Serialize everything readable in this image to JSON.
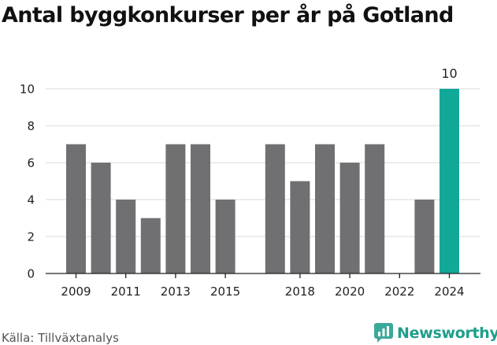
{
  "header": {
    "title": "Antal byggkonkurser per år på Gotland"
  },
  "footer": {
    "source": "Källa: Tillväxtanalys",
    "brand": "Newsworthy"
  },
  "icons": {
    "brand_icon": "newsworthy-logo-icon"
  },
  "colors": {
    "bar_default": "#707073",
    "bar_highlight": "#12a898",
    "grid": "#d9d9d9",
    "axis": "#222222",
    "text": "#222222",
    "brand": "#1f9e8b"
  },
  "chart_data": {
    "type": "bar",
    "title": "Antal byggkonkurser per år på Gotland",
    "xlabel": "",
    "ylabel": "",
    "categories": [
      "2009",
      "2010",
      "2011",
      "2012",
      "2013",
      "2014",
      "2015",
      "2016",
      "2017",
      "2018",
      "2019",
      "2020",
      "2021",
      "2022",
      "2023",
      "2024"
    ],
    "values": [
      7,
      6,
      4,
      3,
      7,
      7,
      4,
      0,
      7,
      5,
      7,
      6,
      7,
      0,
      4,
      10
    ],
    "highlight_index": 15,
    "highlight_label": "10",
    "x_tick_labels": [
      "2009",
      "2011",
      "2013",
      "2015",
      "2018",
      "2020",
      "2022",
      "2024"
    ],
    "y_ticks": [
      0,
      2,
      4,
      6,
      8,
      10
    ],
    "ylim": [
      0,
      10
    ],
    "grid": true,
    "legend": "none"
  }
}
